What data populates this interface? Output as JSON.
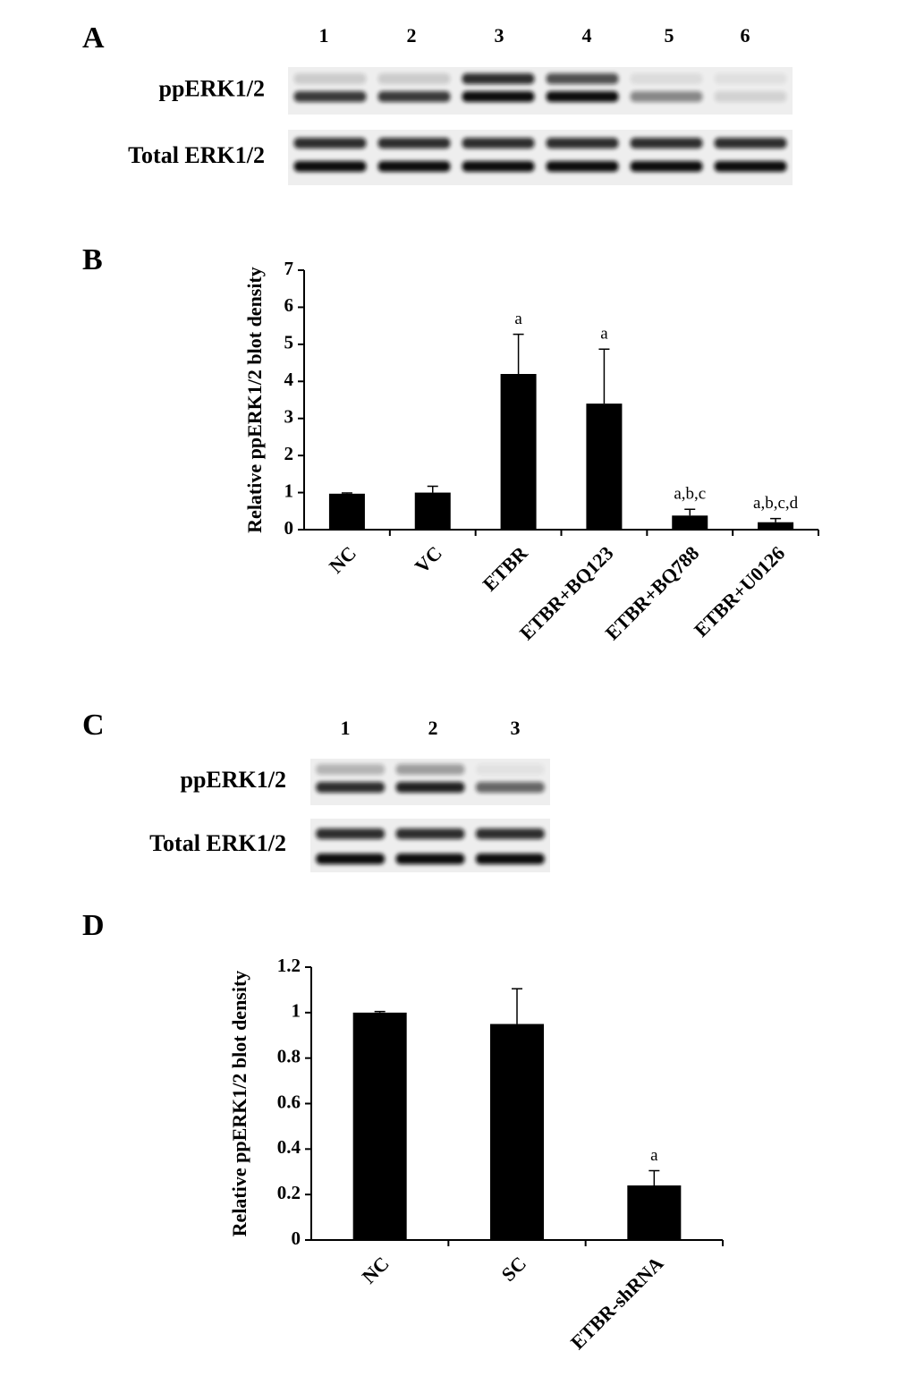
{
  "panel_letters": [
    "A",
    "B",
    "C",
    "D"
  ],
  "blot_a": {
    "lanes": [
      "1",
      "2",
      "3",
      "4",
      "5",
      "6"
    ],
    "rows": [
      "ppERK1/2",
      "Total ERK1/2"
    ]
  },
  "blot_c": {
    "lanes": [
      "1",
      "2",
      "3"
    ],
    "rows": [
      "ppERK1/2",
      "Total ERK1/2"
    ]
  },
  "chart_data": [
    {
      "type": "bar",
      "y_label": "Relative ppERK1/2 blot density",
      "categories": [
        "NC",
        "VC",
        "ETBR",
        "ETBR+BQ123",
        "ETBR+BQ788",
        "ETBR+U0126"
      ],
      "values": [
        0.97,
        1.0,
        4.2,
        3.4,
        0.38,
        0.2
      ],
      "errors": [
        0.02,
        0.17,
        1.07,
        1.47,
        0.17,
        0.1
      ],
      "annotations": [
        null,
        null,
        "a",
        "a",
        "a,b,c",
        "a,b,c,d"
      ],
      "color": "#000000",
      "ylim": [
        0,
        7
      ],
      "yticks": [
        0,
        1,
        2,
        3,
        4,
        5,
        6,
        7
      ],
      "grid": false
    },
    {
      "type": "bar",
      "y_label": "Relative ppERK1/2 blot density",
      "categories": [
        "NC",
        "SC",
        "ETBR-shRNA"
      ],
      "values": [
        1.0,
        0.95,
        0.24
      ],
      "errors": [
        0.005,
        0.155,
        0.065
      ],
      "annotations": [
        null,
        null,
        "a"
      ],
      "color": "#000000",
      "ylim": [
        0,
        1.2
      ],
      "yticks": [
        0,
        0.2,
        0.4,
        0.6,
        0.8,
        1,
        1.2
      ],
      "grid": false
    }
  ]
}
